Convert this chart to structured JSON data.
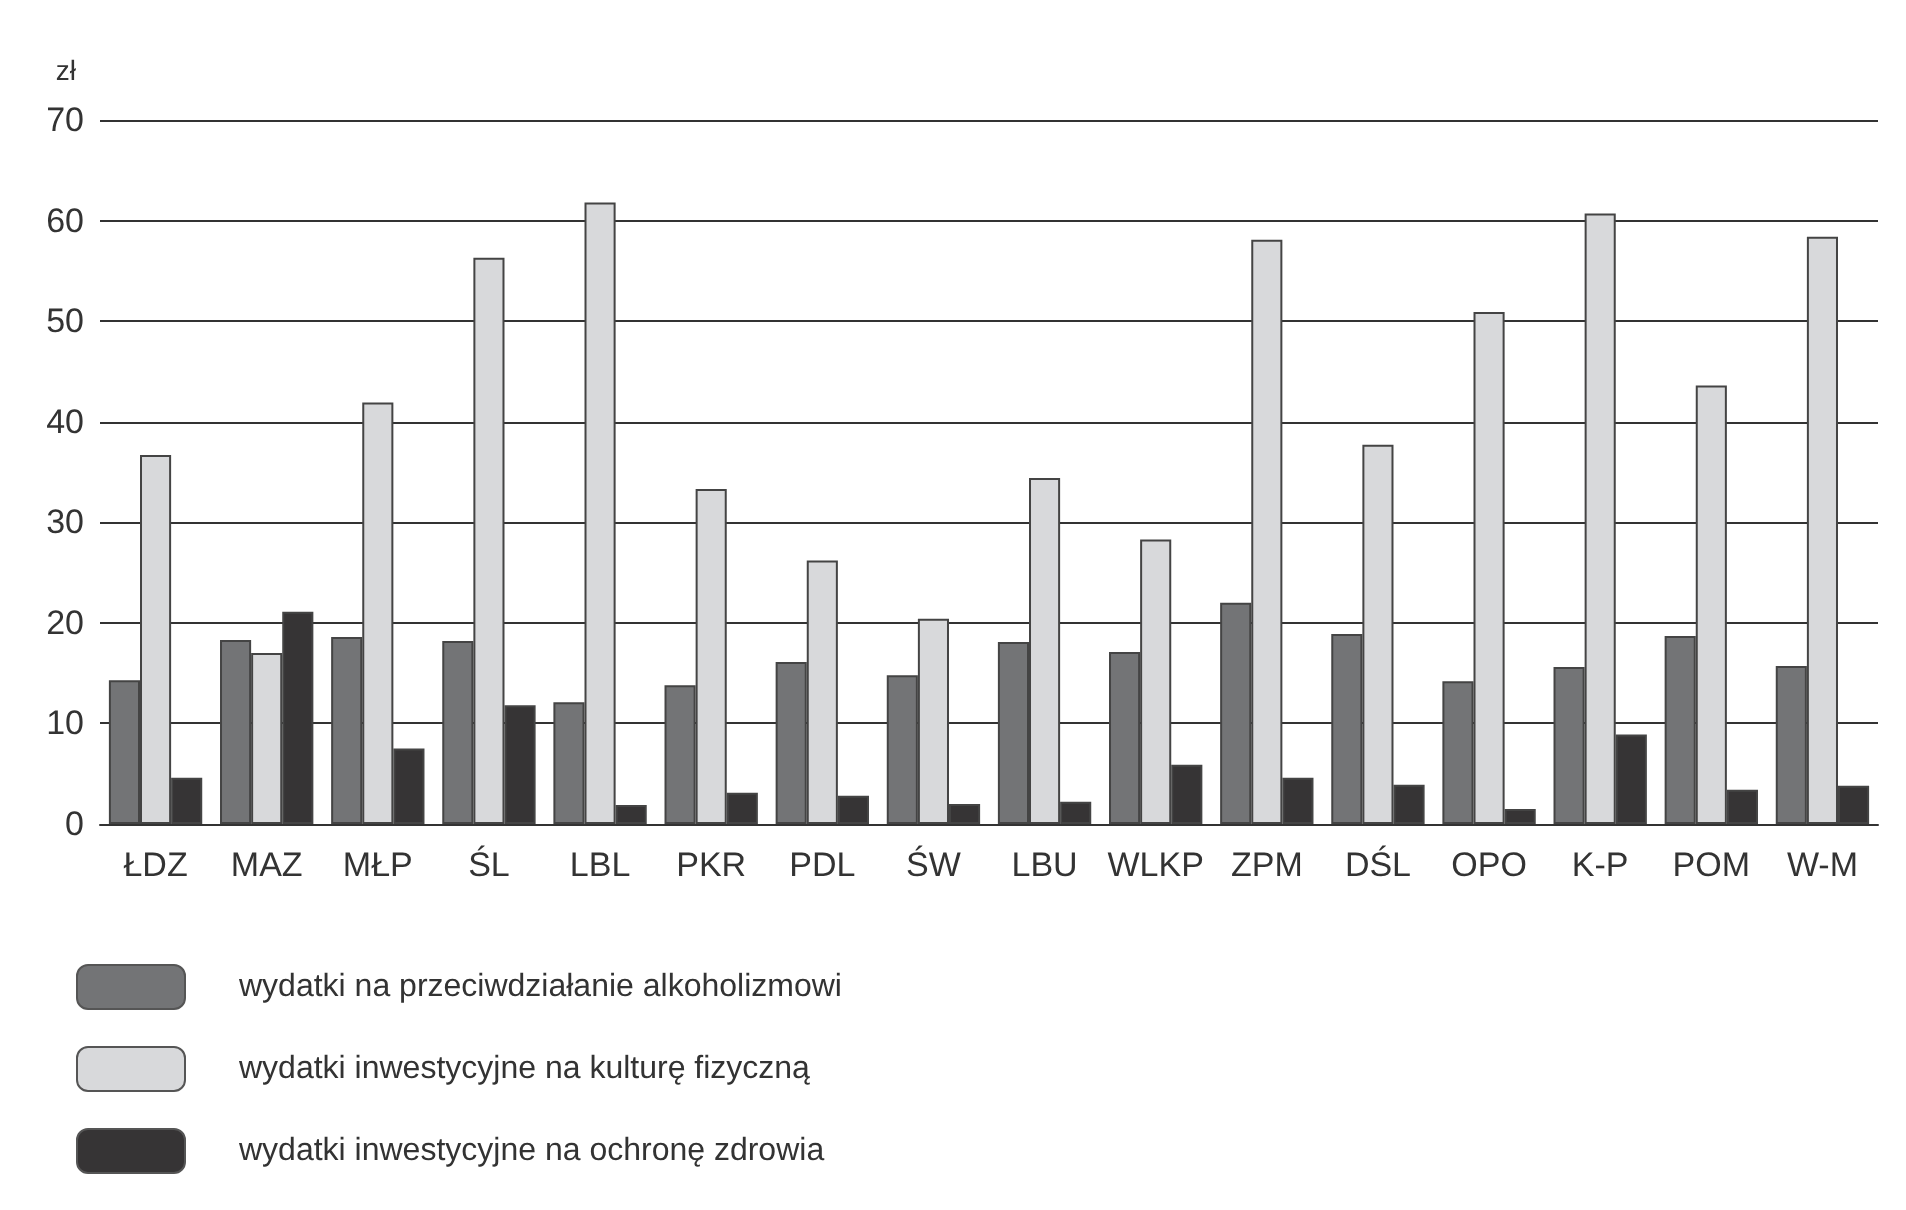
{
  "chart_data": {
    "type": "bar",
    "ylabel": "zł",
    "categories": [
      "ŁDZ",
      "MAZ",
      "MŁP",
      "ŚL",
      "LBL",
      "PKR",
      "PDL",
      "ŚW",
      "LBU",
      "WLKP",
      "ZPM",
      "DŚL",
      "OPO",
      "K-P",
      "POM",
      "W-M"
    ],
    "series": [
      {
        "name": "wydatki na przeciwdziałanie alkoholizmowi",
        "color": "#737476",
        "values": [
          14.3,
          18.3,
          18.6,
          18.2,
          12.1,
          13.8,
          16.1,
          14.8,
          18.1,
          17.1,
          22.0,
          18.9,
          14.2,
          15.6,
          18.7,
          15.7
        ]
      },
      {
        "name": "wydatki inwestycyjne na kulturę fizyczną",
        "color": "#d8d9db",
        "values": [
          36.7,
          17.0,
          41.9,
          56.3,
          61.8,
          33.3,
          26.2,
          20.4,
          34.4,
          28.3,
          58.1,
          37.7,
          50.9,
          60.7,
          43.6,
          58.4
        ]
      },
      {
        "name": "wydatki inwestycyjne na ochronę zdrowia",
        "color": "#363435",
        "values": [
          4.6,
          21.1,
          7.5,
          11.8,
          1.9,
          3.1,
          2.8,
          2.0,
          2.2,
          5.9,
          4.6,
          3.9,
          1.5,
          8.9,
          3.4,
          3.8
        ]
      }
    ],
    "ylim": [
      0,
      70
    ],
    "yticks": [
      0,
      10,
      20,
      30,
      40,
      50,
      60,
      70
    ],
    "grid": "y",
    "legend": "bottom left"
  }
}
